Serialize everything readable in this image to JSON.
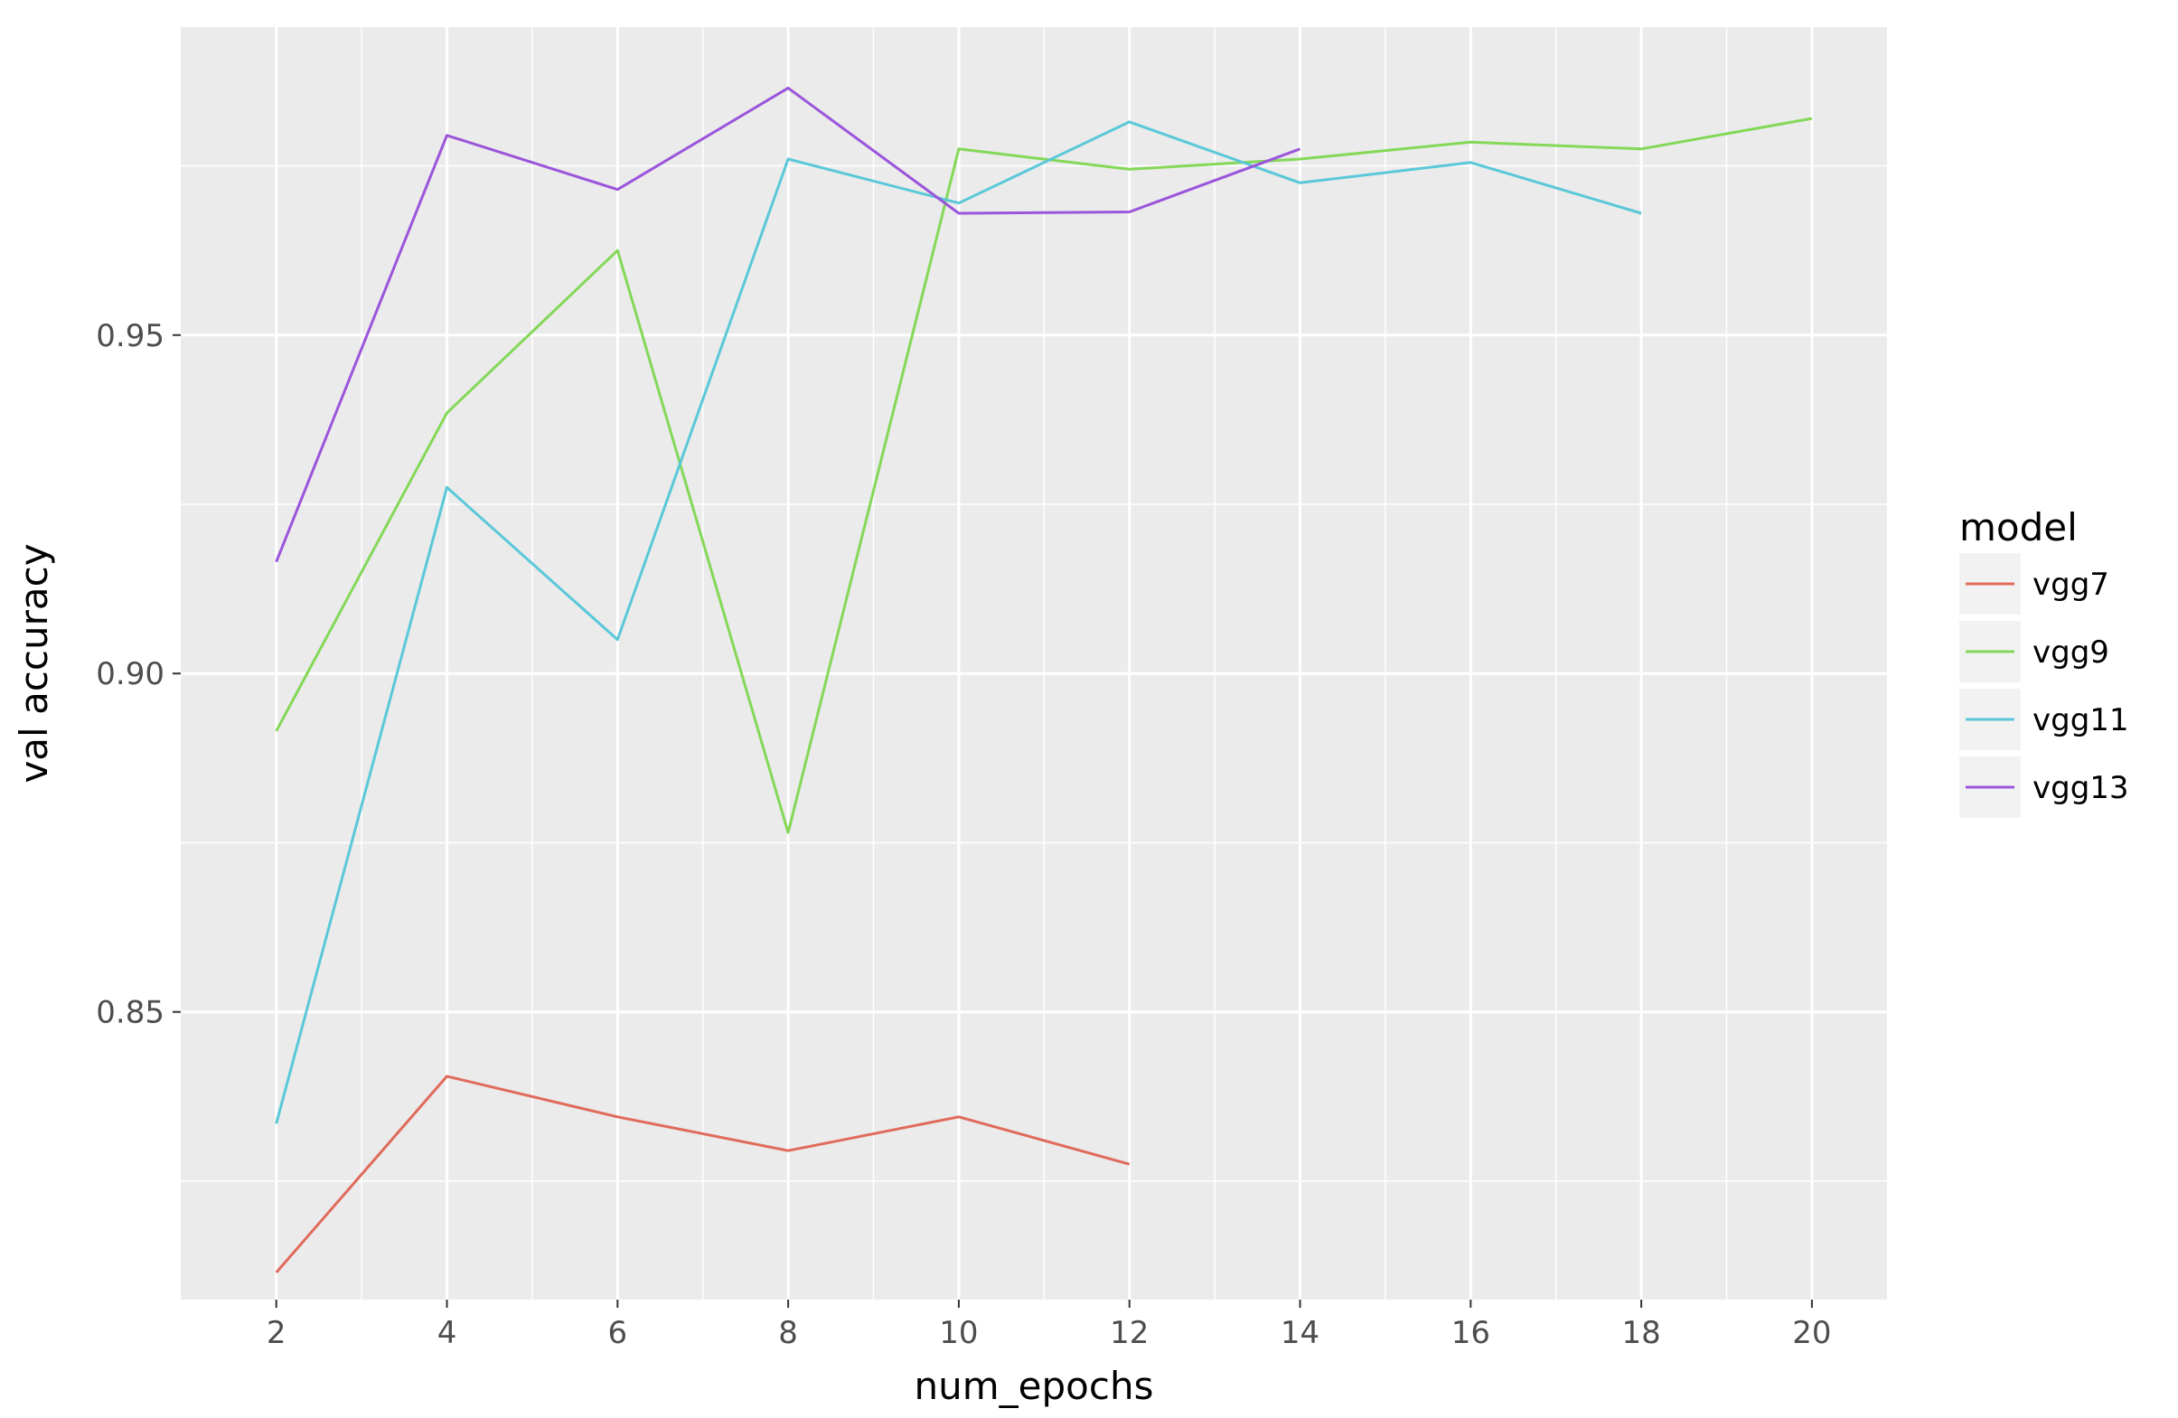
{
  "chart_data": {
    "type": "line",
    "title": "",
    "xlabel": "num_epochs",
    "ylabel": "val accuracy",
    "xlim": [
      0.88,
      20.88
    ],
    "ylim": [
      0.8075,
      0.9955
    ],
    "x_ticks": [
      2,
      4,
      6,
      8,
      10,
      12,
      14,
      16,
      18,
      20
    ],
    "y_ticks": [
      0.85,
      0.9,
      0.95
    ],
    "y_tick_labels": [
      "0.85",
      "0.90",
      "0.95"
    ],
    "x_minor_ticks": [
      3,
      5,
      7,
      9,
      11,
      13,
      15,
      17,
      19
    ],
    "y_minor_ticks": [
      0.825,
      0.875,
      0.925,
      0.975
    ],
    "grid": true,
    "panel_background": "#EBEBEB",
    "legend": {
      "title": "model",
      "position": "right"
    },
    "series": [
      {
        "name": "vgg7",
        "color": "#E06A5B",
        "x": [
          2,
          4,
          6,
          8,
          10,
          12
        ],
        "y": [
          0.8115,
          0.8405,
          0.8345,
          0.8295,
          0.8345,
          0.8275
        ]
      },
      {
        "name": "vgg9",
        "color": "#84D858",
        "x": [
          2,
          4,
          6,
          8,
          10,
          12,
          14,
          16,
          18,
          20
        ],
        "y": [
          0.8915,
          0.9385,
          0.9625,
          0.8765,
          0.9775,
          0.9745,
          0.976,
          0.9785,
          0.9775,
          0.982
        ]
      },
      {
        "name": "vgg11",
        "color": "#5AC8D8",
        "x": [
          2,
          4,
          6,
          8,
          10,
          12,
          14,
          16,
          18
        ],
        "y": [
          0.8335,
          0.9275,
          0.905,
          0.976,
          0.9695,
          0.9815,
          0.9725,
          0.9755,
          0.968
        ]
      },
      {
        "name": "vgg13",
        "color": "#9B55DB",
        "x": [
          2,
          4,
          6,
          8,
          10,
          12,
          14
        ],
        "y": [
          0.9165,
          0.9795,
          0.9715,
          0.9865,
          0.968,
          0.9682,
          0.9775
        ]
      }
    ]
  }
}
